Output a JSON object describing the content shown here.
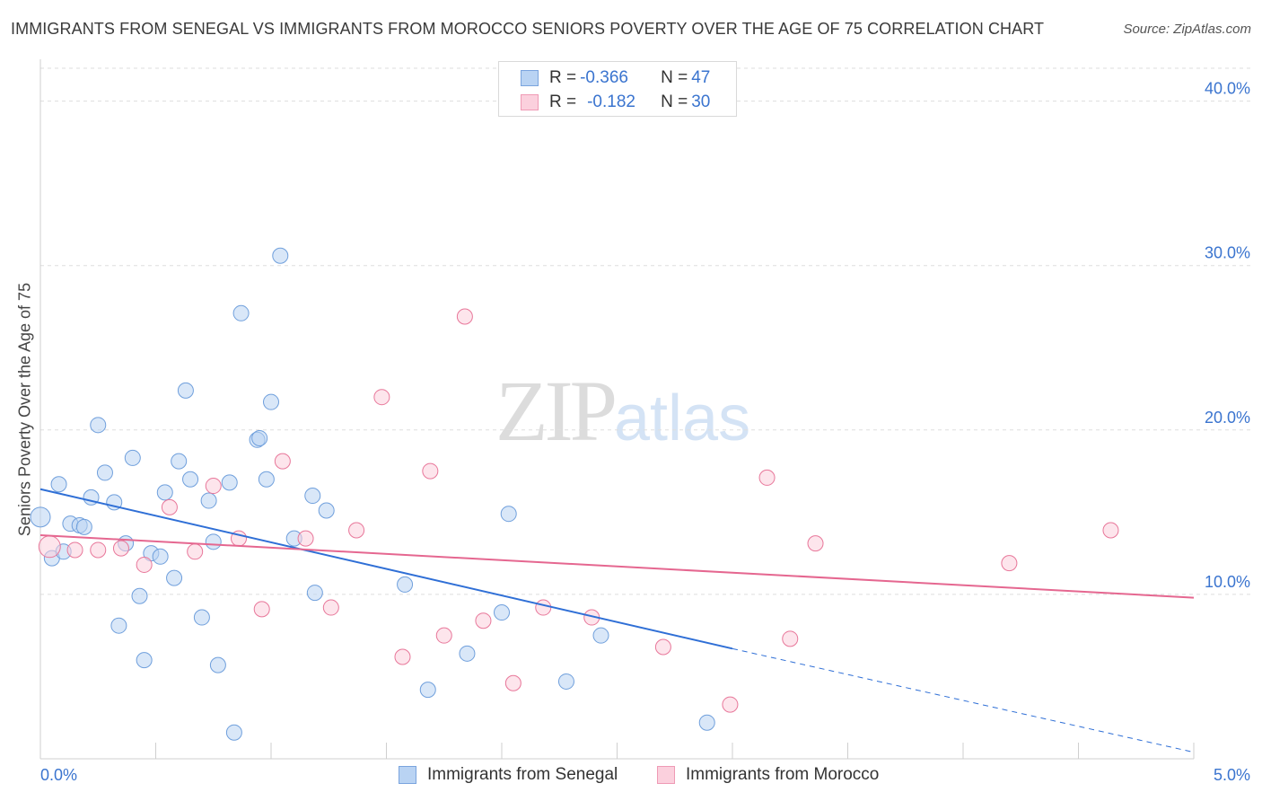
{
  "chart_data": {
    "type": "scatter",
    "title": "IMMIGRANTS FROM SENEGAL VS IMMIGRANTS FROM MOROCCO SENIORS POVERTY OVER THE AGE OF 75 CORRELATION CHART",
    "source": "Source: ZipAtlas.com",
    "xlabel": "",
    "ylabel": "Seniors Poverty Over the Age of 75",
    "xlim": [
      0,
      5
    ],
    "ylim": [
      0,
      42
    ],
    "x_tick_labels": [
      "0.0%",
      "5.0%"
    ],
    "y_ticks": [
      10,
      20,
      30,
      40
    ],
    "y_tick_labels": [
      "10.0%",
      "20.0%",
      "30.0%",
      "40.0%"
    ],
    "grid": true,
    "watermark": {
      "zip": "ZIP",
      "atlas": "atlas"
    },
    "legend": {
      "rows": [
        {
          "r_label": "R = ",
          "r_value": "-0.366",
          "n_label": "N = ",
          "n_value": "47"
        },
        {
          "r_label": "R = ",
          "r_value": "-0.182",
          "n_label": "N = ",
          "n_value": "30"
        }
      ]
    },
    "series": [
      {
        "name": "Immigrants from Senegal",
        "color": "#6f9fdc",
        "fill": "#b9d3f3",
        "trend": {
          "x0": 0.0,
          "y0": 16.4,
          "x1": 3.0,
          "y1": 6.7,
          "dash_to_x": 5.0,
          "dash_to_y": 0.4
        },
        "points": [
          [
            0.0,
            14.7
          ],
          [
            0.05,
            12.2
          ],
          [
            0.08,
            16.7
          ],
          [
            0.1,
            12.6
          ],
          [
            0.13,
            14.3
          ],
          [
            0.17,
            14.2
          ],
          [
            0.19,
            14.1
          ],
          [
            0.22,
            15.9
          ],
          [
            0.25,
            20.3
          ],
          [
            0.28,
            17.4
          ],
          [
            0.32,
            15.6
          ],
          [
            0.34,
            8.1
          ],
          [
            0.37,
            13.1
          ],
          [
            0.4,
            18.3
          ],
          [
            0.43,
            9.9
          ],
          [
            0.45,
            6.0
          ],
          [
            0.48,
            12.5
          ],
          [
            0.52,
            12.3
          ],
          [
            0.54,
            16.2
          ],
          [
            0.58,
            11.0
          ],
          [
            0.6,
            18.1
          ],
          [
            0.63,
            22.4
          ],
          [
            0.65,
            17.0
          ],
          [
            0.7,
            8.6
          ],
          [
            0.73,
            15.7
          ],
          [
            0.75,
            13.2
          ],
          [
            0.77,
            5.7
          ],
          [
            0.82,
            16.8
          ],
          [
            0.84,
            1.6
          ],
          [
            0.87,
            27.1
          ],
          [
            0.94,
            19.4
          ],
          [
            0.95,
            19.5
          ],
          [
            0.98,
            17.0
          ],
          [
            1.0,
            21.7
          ],
          [
            1.04,
            30.6
          ],
          [
            1.1,
            13.4
          ],
          [
            1.18,
            16.0
          ],
          [
            1.19,
            10.1
          ],
          [
            1.24,
            15.1
          ],
          [
            1.58,
            10.6
          ],
          [
            1.68,
            4.2
          ],
          [
            1.85,
            6.4
          ],
          [
            2.0,
            8.9
          ],
          [
            2.03,
            14.9
          ],
          [
            2.28,
            4.7
          ],
          [
            2.43,
            7.5
          ],
          [
            2.89,
            2.2
          ]
        ]
      },
      {
        "name": "Immigrants from Morocco",
        "color": "#e8779a",
        "fill": "#fbd0dd",
        "trend": {
          "x0": 0.0,
          "y0": 13.6,
          "x1": 5.0,
          "y1": 9.8
        },
        "points": [
          [
            0.04,
            12.9
          ],
          [
            0.15,
            12.7
          ],
          [
            0.25,
            12.7
          ],
          [
            0.35,
            12.8
          ],
          [
            0.45,
            11.8
          ],
          [
            0.56,
            15.3
          ],
          [
            0.67,
            12.6
          ],
          [
            0.75,
            16.6
          ],
          [
            0.86,
            13.4
          ],
          [
            0.96,
            9.1
          ],
          [
            1.05,
            18.1
          ],
          [
            1.15,
            13.4
          ],
          [
            1.26,
            9.2
          ],
          [
            1.37,
            13.9
          ],
          [
            1.48,
            22.0
          ],
          [
            1.57,
            6.2
          ],
          [
            1.69,
            17.5
          ],
          [
            1.75,
            7.5
          ],
          [
            1.84,
            26.9
          ],
          [
            1.92,
            8.4
          ],
          [
            2.05,
            4.6
          ],
          [
            2.18,
            9.2
          ],
          [
            2.39,
            8.6
          ],
          [
            2.7,
            6.8
          ],
          [
            2.99,
            3.3
          ],
          [
            3.15,
            17.1
          ],
          [
            3.25,
            7.3
          ],
          [
            3.36,
            13.1
          ],
          [
            4.2,
            11.9
          ],
          [
            4.64,
            13.9
          ]
        ]
      }
    ]
  }
}
